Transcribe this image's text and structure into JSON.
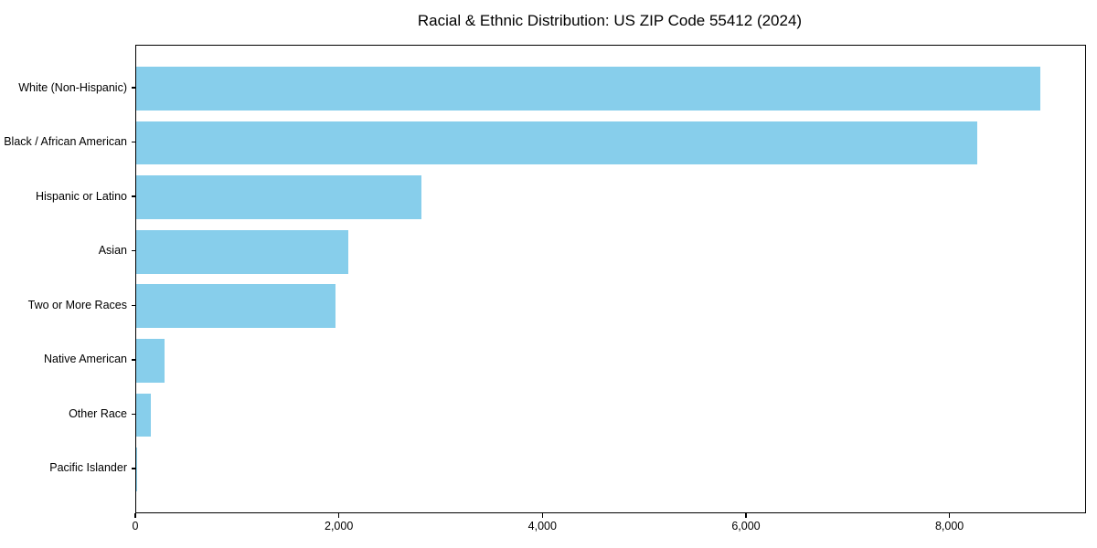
{
  "chart_data": {
    "type": "bar",
    "orientation": "horizontal",
    "title": "Racial & Ethnic Distribution: US ZIP Code 55412 (2024)",
    "categories": [
      "White (Non-Hispanic)",
      "Black / African American",
      "Hispanic or Latino",
      "Asian",
      "Two or More Races",
      "Native American",
      "Other Race",
      "Pacific Islander"
    ],
    "values": [
      8880,
      8260,
      2800,
      2080,
      1960,
      280,
      145,
      12
    ],
    "xlabel": "",
    "ylabel": "",
    "xlim": [
      0,
      9324
    ],
    "x_ticks": [
      0,
      2000,
      4000,
      6000,
      8000
    ],
    "x_tick_labels": [
      "0",
      "2,000",
      "4,000",
      "6,000",
      "8,000"
    ],
    "bar_color": "#87CEEB",
    "axis_color": "#000000",
    "background_color": "#FFFFFF",
    "grid": false,
    "legend": null
  }
}
